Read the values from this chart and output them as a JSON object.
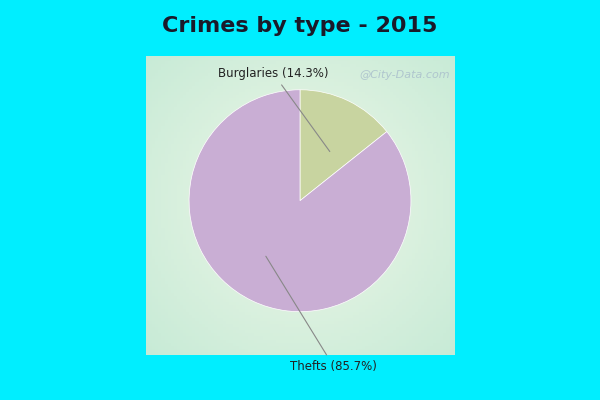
{
  "title": "Crimes by type - 2015",
  "slices": [
    {
      "label": "Burglaries (14.3%)",
      "pct": 14.3,
      "color": "#c8d4a0"
    },
    {
      "label": "Thefts (85.7%)",
      "pct": 85.7,
      "color": "#c9aed4"
    }
  ],
  "bg_cyan": "#00eeff",
  "bg_inner": "#d8f0e0",
  "title_fontsize": 16,
  "title_color": "#1a1a2a",
  "watermark": "@City-Data.com",
  "watermark_color": "#aabfcc",
  "label_fontsize": 8.5,
  "border_width": 8
}
